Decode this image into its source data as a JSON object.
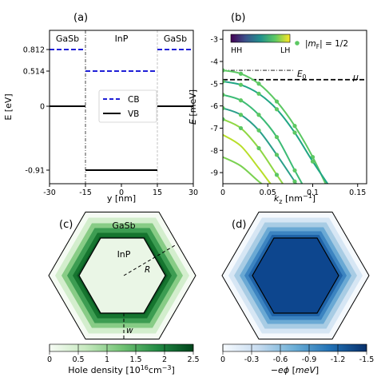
{
  "chart_data": [
    {
      "panel": "(a)",
      "type": "line",
      "xlabel": "y [nm]",
      "ylabel": "E [eV]",
      "xlim": [
        -30,
        30
      ],
      "ylim": [
        -1.0,
        1.0
      ],
      "xticks": [
        "-30",
        "-15",
        "0",
        "15",
        "30"
      ],
      "xtick_values": [
        -30,
        -15,
        0,
        15,
        30
      ],
      "yticks": [
        "0.812",
        "0.514",
        "0",
        "-0.91"
      ],
      "ytick_values": [
        0.812,
        0.514,
        0,
        -0.91
      ],
      "regions": [
        "GaSb",
        "InP",
        "GaSb"
      ],
      "region_centers": [
        -22.5,
        0,
        22.5
      ],
      "interfaces": [
        -15,
        15
      ],
      "legend": [
        "CB",
        "VB"
      ],
      "legend_placement": "center",
      "series": [
        {
          "name": "CB",
          "style": "dashed",
          "color": "#1f1fd6",
          "x": [
            -30,
            -15,
            -15,
            15,
            15,
            30
          ],
          "y": [
            0.812,
            0.812,
            0.514,
            0.514,
            0.812,
            0.812
          ]
        },
        {
          "name": "VB",
          "style": "solid",
          "color": "#000000",
          "x": [
            -30,
            -15,
            -15,
            15,
            15,
            30
          ],
          "y": [
            0,
            0,
            -0.91,
            -0.91,
            0,
            0
          ]
        }
      ]
    },
    {
      "panel": "(b)",
      "type": "line",
      "xlabel": "k_z [nm⁻¹]",
      "ylabel": "E [meV]",
      "xlim": [
        0,
        0.16
      ],
      "ylim": [
        -9.5,
        -2.6
      ],
      "xticks": [
        "0",
        "0.05",
        "0.1",
        "0.15"
      ],
      "xtick_values": [
        0,
        0.05,
        0.1,
        0.15
      ],
      "yticks": [
        "-3",
        "-4",
        "-5",
        "-6",
        "-7",
        "-8",
        "-9"
      ],
      "ytick_values": [
        -3,
        -4,
        -5,
        -6,
        -7,
        -8,
        -9
      ],
      "colorbar_labels": [
        "HH",
        "LH"
      ],
      "colorbar_colors": [
        "#440154",
        "#3b528b",
        "#21908c",
        "#5dc863",
        "#fde725"
      ],
      "legend": "|m_F| = 1/2",
      "legend_color": "#5cc863",
      "E0_label": "E₀",
      "E0_value": -4.4,
      "mu_label": "μ",
      "mu_value": -4.82,
      "bands": [
        {
          "color": "#5cc863",
          "marked": true,
          "x": [
            0,
            0.02,
            0.04,
            0.06,
            0.08,
            0.1,
            0.12
          ],
          "y": [
            -4.4,
            -4.55,
            -5.0,
            -5.8,
            -6.9,
            -8.3,
            -10.0
          ]
        },
        {
          "color": "#21a685",
          "marked": true,
          "x": [
            0,
            0.02,
            0.04,
            0.06,
            0.08,
            0.1,
            0.125
          ],
          "y": [
            -4.9,
            -5.05,
            -5.45,
            -6.15,
            -7.2,
            -8.5,
            -10.0
          ]
        },
        {
          "color": "#3cbb75",
          "marked": true,
          "x": [
            0,
            0.02,
            0.04,
            0.06,
            0.08,
            0.095
          ],
          "y": [
            -5.5,
            -5.75,
            -6.4,
            -7.4,
            -8.9,
            -10.0
          ]
        },
        {
          "color": "#2a9f8a",
          "marked": true,
          "x": [
            0,
            0.02,
            0.04,
            0.06,
            0.08,
            0.09
          ],
          "y": [
            -6.1,
            -6.4,
            -7.1,
            -8.2,
            -9.4,
            -10.0
          ]
        },
        {
          "color": "#8fd744",
          "marked": true,
          "x": [
            0,
            0.02,
            0.04,
            0.06,
            0.075
          ],
          "y": [
            -6.6,
            -7.0,
            -7.9,
            -9.1,
            -10.0
          ]
        },
        {
          "color": "#b8de29",
          "marked": false,
          "x": [
            0,
            0.02,
            0.04,
            0.055,
            0.065
          ],
          "y": [
            -7.3,
            -7.8,
            -8.8,
            -9.6,
            -10.0
          ]
        },
        {
          "color": "#7ad151",
          "marked": false,
          "x": [
            0,
            0.02,
            0.04,
            0.06
          ],
          "y": [
            -8.3,
            -8.7,
            -9.4,
            -10.0
          ]
        }
      ]
    },
    {
      "panel": "(c)",
      "type": "heatmap",
      "inner_label": "InP",
      "outer_label": "GaSb",
      "radius_label": "R",
      "width_label": "w",
      "colorbar_label": "Hole density [10¹⁶cm⁻³]",
      "colorbar_ticks": [
        "0",
        "0.5",
        "1",
        "1.5",
        "2",
        "2.5"
      ],
      "colorbar_tick_values": [
        0,
        0.5,
        1,
        1.5,
        2,
        2.5
      ],
      "colorbar_range": [
        0,
        2.5
      ],
      "colors": [
        "#f7fcf5",
        "#c7e9c0",
        "#74c476",
        "#238b45",
        "#00441b"
      ]
    },
    {
      "panel": "(d)",
      "type": "heatmap",
      "colorbar_label": "−eϕ [meV]",
      "colorbar_ticks": [
        "0",
        "-0.3",
        "-0.6",
        "-0.9",
        "-1.2",
        "-1.5"
      ],
      "colorbar_tick_values": [
        0,
        -0.3,
        -0.6,
        -0.9,
        -1.2,
        -1.5
      ],
      "colorbar_range": [
        0,
        -1.5
      ],
      "colors": [
        "#f7fbff",
        "#c6dbef",
        "#6baed6",
        "#2171b5",
        "#08306b"
      ]
    }
  ]
}
